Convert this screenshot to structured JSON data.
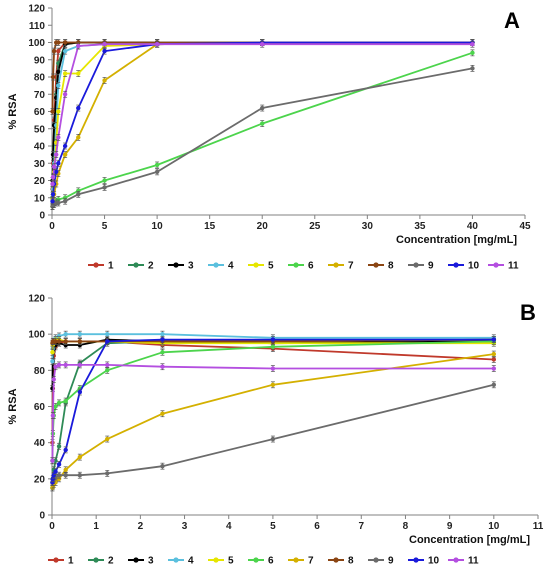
{
  "chart_data": [
    {
      "type": "line",
      "panel_label": "A",
      "xlabel": "Concentration [mg/mL]",
      "ylabel": "% RSA",
      "xlim": [
        0,
        45
      ],
      "ylim": [
        0,
        120
      ],
      "xticks": [
        0,
        5,
        10,
        15,
        20,
        25,
        30,
        35,
        40,
        45
      ],
      "yticks": [
        0,
        10,
        20,
        30,
        40,
        50,
        60,
        70,
        80,
        90,
        100,
        110,
        120
      ],
      "grid": false,
      "legend_position": "bottom",
      "series": [
        {
          "name": "1",
          "color": "#c0392b",
          "x": [
            0.05,
            0.1,
            0.2,
            0.4,
            0.6,
            1.25,
            2.5,
            5,
            10,
            20,
            40
          ],
          "y": [
            15,
            30,
            55,
            80,
            95,
            100,
            100,
            100,
            100,
            100,
            100
          ]
        },
        {
          "name": "2",
          "color": "#2e8b57",
          "x": [
            0.05,
            0.1,
            0.2,
            0.4,
            0.6,
            1.25,
            2.5,
            5,
            10,
            20,
            40
          ],
          "y": [
            10,
            20,
            40,
            70,
            88,
            99,
            100,
            100,
            100,
            100,
            100
          ]
        },
        {
          "name": "3",
          "color": "#000000",
          "x": [
            0.05,
            0.1,
            0.2,
            0.4,
            0.6,
            1.25,
            2.5,
            5,
            10,
            20,
            40
          ],
          "y": [
            20,
            35,
            52,
            68,
            83,
            99,
            100,
            100,
            100,
            100,
            100
          ]
        },
        {
          "name": "4",
          "color": "#5bc0de",
          "x": [
            0.05,
            0.1,
            0.2,
            0.4,
            0.6,
            1.25,
            2.5,
            5,
            10,
            20,
            40
          ],
          "y": [
            8,
            15,
            30,
            52,
            75,
            95,
            98,
            99,
            100,
            100,
            100
          ]
        },
        {
          "name": "5",
          "color": "#e6e600",
          "x": [
            0.05,
            0.1,
            0.2,
            0.4,
            0.6,
            1.25,
            2.5,
            5,
            10,
            20,
            40
          ],
          "y": [
            9,
            12,
            25,
            42,
            60,
            82,
            82,
            98,
            99,
            100,
            100
          ]
        },
        {
          "name": "6",
          "color": "#4cd44c",
          "x": [
            0.05,
            0.1,
            0.2,
            0.4,
            0.6,
            1.25,
            2.5,
            5,
            10,
            20,
            40
          ],
          "y": [
            5,
            6,
            7,
            8,
            9,
            10,
            14,
            20,
            29,
            53,
            94
          ]
        },
        {
          "name": "7",
          "color": "#d4b000",
          "x": [
            0.05,
            0.1,
            0.2,
            0.4,
            0.6,
            1.25,
            2.5,
            5,
            10,
            20,
            40
          ],
          "y": [
            5,
            8,
            12,
            18,
            24,
            35,
            45,
            78,
            99,
            100,
            100
          ]
        },
        {
          "name": "8",
          "color": "#8b4513",
          "x": [
            0.05,
            0.1,
            0.2,
            0.4,
            0.6,
            1.25,
            2.5,
            5,
            10,
            20,
            40
          ],
          "y": [
            60,
            80,
            95,
            100,
            100,
            100,
            100,
            100,
            100,
            100,
            100
          ]
        },
        {
          "name": "9",
          "color": "#6b6b6b",
          "x": [
            0.05,
            0.1,
            0.2,
            0.4,
            0.6,
            1.25,
            2.5,
            5,
            10,
            20,
            40
          ],
          "y": [
            5,
            6,
            6,
            7,
            7,
            8,
            12,
            16,
            25,
            62,
            85
          ]
        },
        {
          "name": "10",
          "color": "#1a1adb",
          "x": [
            0.05,
            0.1,
            0.2,
            0.4,
            0.6,
            1.25,
            2.5,
            5,
            10,
            20,
            40
          ],
          "y": [
            8,
            12,
            18,
            25,
            30,
            40,
            62,
            95,
            99,
            100,
            100
          ]
        },
        {
          "name": "11",
          "color": "#b44fe0",
          "x": [
            0.05,
            0.1,
            0.2,
            0.4,
            0.6,
            1.25,
            2.5,
            5,
            10,
            20,
            40
          ],
          "y": [
            18,
            22,
            28,
            35,
            45,
            70,
            98,
            99,
            99,
            99,
            99
          ]
        }
      ]
    },
    {
      "type": "line",
      "panel_label": "B",
      "xlabel": "Concentration [mg/mL]",
      "ylabel": "% RSA",
      "xlim": [
        0,
        11
      ],
      "ylim": [
        0,
        120
      ],
      "xticks": [
        0,
        1,
        2,
        3,
        4,
        5,
        6,
        7,
        8,
        9,
        10,
        11
      ],
      "yticks": [
        0,
        20,
        40,
        60,
        80,
        100,
        120
      ],
      "grid": false,
      "legend_position": "bottom",
      "series": [
        {
          "name": "1",
          "color": "#c0392b",
          "x": [
            0.01,
            0.02,
            0.04,
            0.08,
            0.16,
            0.31,
            0.63,
            1.25,
            2.5,
            5,
            10
          ],
          "y": [
            40,
            70,
            88,
            93,
            95,
            96,
            96,
            96,
            94,
            92,
            86
          ]
        },
        {
          "name": "2",
          "color": "#2e8b57",
          "x": [
            0.01,
            0.02,
            0.04,
            0.08,
            0.16,
            0.31,
            0.63,
            1.25,
            2.5,
            5,
            10
          ],
          "y": [
            15,
            20,
            25,
            30,
            38,
            62,
            84,
            95,
            96,
            96,
            97
          ]
        },
        {
          "name": "3",
          "color": "#000000",
          "x": [
            0.01,
            0.02,
            0.04,
            0.08,
            0.16,
            0.31,
            0.63,
            1.25,
            2.5,
            5,
            10
          ],
          "y": [
            70,
            85,
            92,
            94,
            95,
            94,
            94,
            97,
            96,
            95,
            96
          ]
        },
        {
          "name": "4",
          "color": "#5bc0de",
          "x": [
            0.01,
            0.02,
            0.04,
            0.08,
            0.16,
            0.31,
            0.63,
            1.25,
            2.5,
            5,
            10
          ],
          "y": [
            85,
            92,
            96,
            98,
            99,
            100,
            100,
            100,
            100,
            98,
            98
          ]
        },
        {
          "name": "5",
          "color": "#e6e600",
          "x": [
            0.01,
            0.02,
            0.04,
            0.08,
            0.16,
            0.31,
            0.63,
            1.25,
            2.5,
            5,
            10
          ],
          "y": [
            90,
            94,
            96,
            97,
            97,
            96,
            96,
            96,
            95,
            95,
            95
          ]
        },
        {
          "name": "6",
          "color": "#4cd44c",
          "x": [
            0.01,
            0.02,
            0.04,
            0.08,
            0.16,
            0.31,
            0.63,
            1.25,
            2.5,
            5,
            10
          ],
          "y": [
            30,
            45,
            55,
            60,
            62,
            63,
            70,
            80,
            90,
            93,
            96
          ]
        },
        {
          "name": "7",
          "color": "#d4b000",
          "x": [
            0.01,
            0.02,
            0.04,
            0.08,
            0.16,
            0.31,
            0.63,
            1.25,
            2.5,
            5,
            10
          ],
          "y": [
            15,
            16,
            17,
            18,
            20,
            25,
            32,
            42,
            56,
            72,
            89
          ]
        },
        {
          "name": "8",
          "color": "#8b4513",
          "x": [
            0.01,
            0.02,
            0.04,
            0.08,
            0.16,
            0.31,
            0.63,
            1.25,
            2.5,
            5,
            10
          ],
          "y": [
            95,
            96,
            96,
            96,
            96,
            96,
            96,
            96,
            96,
            96,
            97
          ]
        },
        {
          "name": "9",
          "color": "#6b6b6b",
          "x": [
            0.01,
            0.02,
            0.04,
            0.08,
            0.16,
            0.31,
            0.63,
            1.25,
            2.5,
            5,
            10
          ],
          "y": [
            18,
            19,
            20,
            21,
            22,
            22,
            22,
            23,
            27,
            42,
            72
          ]
        },
        {
          "name": "10",
          "color": "#1a1adb",
          "x": [
            0.01,
            0.02,
            0.04,
            0.08,
            0.16,
            0.31,
            0.63,
            1.25,
            2.5,
            5,
            10
          ],
          "y": [
            18,
            20,
            22,
            24,
            28,
            36,
            68,
            96,
            97,
            97,
            97
          ]
        },
        {
          "name": "11",
          "color": "#b44fe0",
          "x": [
            0.01,
            0.02,
            0.04,
            0.08,
            0.16,
            0.31,
            0.63,
            1.25,
            2.5,
            5,
            10
          ],
          "y": [
            30,
            55,
            75,
            82,
            83,
            83,
            83,
            83,
            82,
            81,
            81
          ]
        }
      ]
    }
  ]
}
